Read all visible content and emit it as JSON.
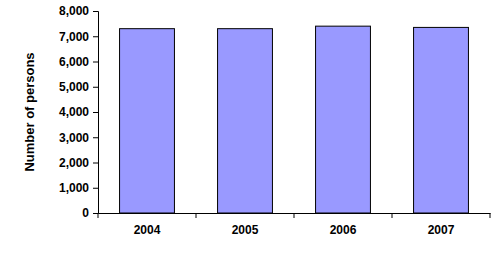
{
  "chart_data": {
    "type": "bar",
    "y_label": "Number of persons",
    "categories": [
      "2004",
      "2005",
      "2006",
      "2007"
    ],
    "values": [
      7300,
      7300,
      7400,
      7350
    ],
    "color": "#9999ff",
    "ylim": [
      0,
      8000
    ],
    "yticks": [
      0,
      {
        "value": 1000,
        "label": "1,000"
      },
      {
        "value": 2000,
        "label": "2,000"
      },
      {
        "value": 3000,
        "label": "3,000"
      },
      {
        "value": 4000,
        "label": "4,000"
      },
      {
        "value": 5000,
        "label": "5,000"
      },
      {
        "value": 6000,
        "label": "6,000"
      },
      {
        "value": 7000,
        "label": "7,000"
      },
      {
        "value": 8000,
        "label": "8,000"
      }
    ],
    "grid": false
  }
}
